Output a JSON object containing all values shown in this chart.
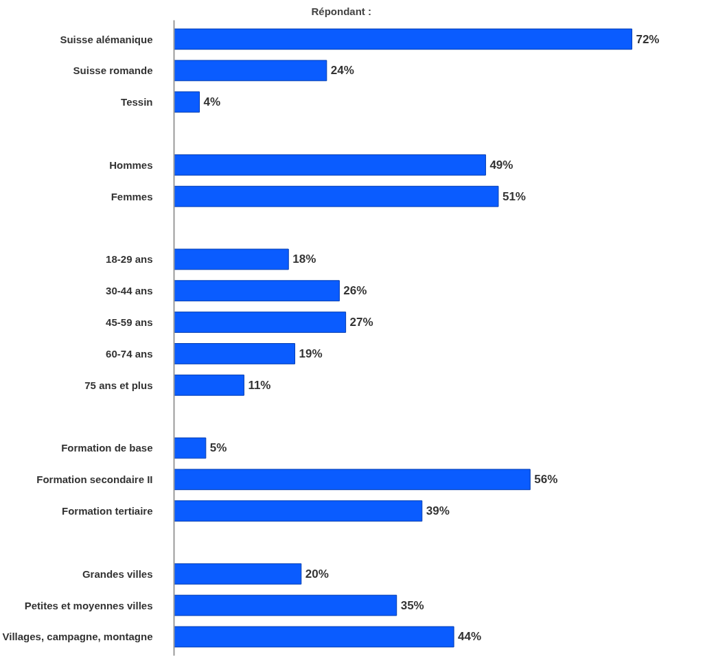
{
  "chart_data": {
    "type": "bar",
    "orientation": "horizontal",
    "title": "Répondant :",
    "categories": [
      "Suisse alémanique",
      "Suisse romande",
      "Tessin",
      null,
      "Hommes",
      "Femmes",
      null,
      "18-29 ans",
      "30-44 ans",
      "45-59 ans",
      "60-74 ans",
      "75 ans et plus",
      null,
      "Formation de base",
      "Formation secondaire II",
      "Formation tertiaire",
      null,
      "Grandes villes",
      "Petites et moyennes villes",
      "Villages, campagne, montagne"
    ],
    "values": [
      72,
      24,
      4,
      null,
      49,
      51,
      null,
      18,
      26,
      27,
      19,
      11,
      null,
      5,
      56,
      39,
      null,
      20,
      35,
      44
    ],
    "value_labels": [
      "72%",
      "24%",
      "4%",
      null,
      "49%",
      "51%",
      null,
      "18%",
      "26%",
      "27%",
      "19%",
      "11%",
      null,
      "5%",
      "56%",
      "39%",
      null,
      "20%",
      "35%",
      "44%"
    ],
    "color": "#0a5cff",
    "grid": false
  }
}
